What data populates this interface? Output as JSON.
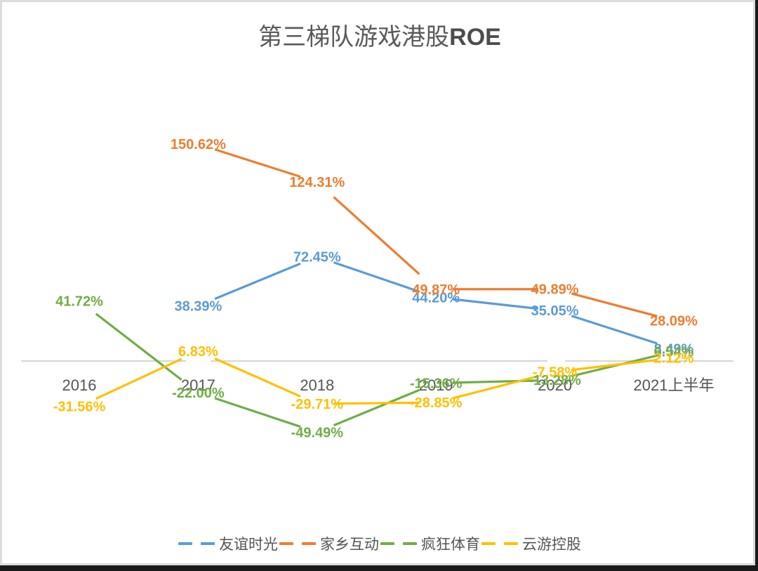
{
  "title": {
    "main": "第三梯队游戏港股",
    "suffix": "ROE"
  },
  "chart_data": {
    "type": "line",
    "title": "第三梯队游戏港股ROE",
    "xlabel": "",
    "ylabel": "",
    "categories": [
      "2016",
      "2017",
      "2018",
      "2019",
      "2020",
      "2021上半年"
    ],
    "unit": "%",
    "grid": false,
    "legend_position": "bottom",
    "series": [
      {
        "name": "友谊时光",
        "color": "#5b9bd5",
        "values": [
          null,
          38.39,
          72.45,
          44.2,
          35.05,
          8.49
        ],
        "labels": [
          null,
          "38.39%",
          "72.45%",
          "44.20%",
          "35.05%",
          "8.49%"
        ]
      },
      {
        "name": "家乡互动",
        "color": "#ed7d31",
        "values": [
          null,
          150.62,
          124.31,
          49.87,
          49.89,
          28.09
        ],
        "labels": [
          null,
          "150.62%",
          "124.31%",
          "49.87%",
          "49.89%",
          "28.09%"
        ]
      },
      {
        "name": "疯狂体育",
        "color": "#70ad47",
        "values": [
          41.72,
          -22.0,
          -49.49,
          -15.36,
          -13.28,
          6.54
        ],
        "labels": [
          "41.72%",
          "-22.00%",
          "-49.49%",
          "-15.36%",
          "-13.28%",
          "6.54%"
        ]
      },
      {
        "name": "云游控股",
        "color": "#ffc000",
        "values": [
          -31.56,
          6.83,
          -29.71,
          -28.85,
          -7.58,
          2.12
        ],
        "labels": [
          "-31.56%",
          "6.83%",
          "-29.71%",
          "-28.85%",
          "-7.58%",
          "2.12%"
        ]
      }
    ]
  },
  "legend": {
    "items": [
      {
        "label": "友谊时光",
        "color": "#5b9bd5"
      },
      {
        "label": "家乡互动",
        "color": "#ed7d31"
      },
      {
        "label": "疯狂体育",
        "color": "#70ad47"
      },
      {
        "label": "云游控股",
        "color": "#ffc000"
      }
    ]
  }
}
